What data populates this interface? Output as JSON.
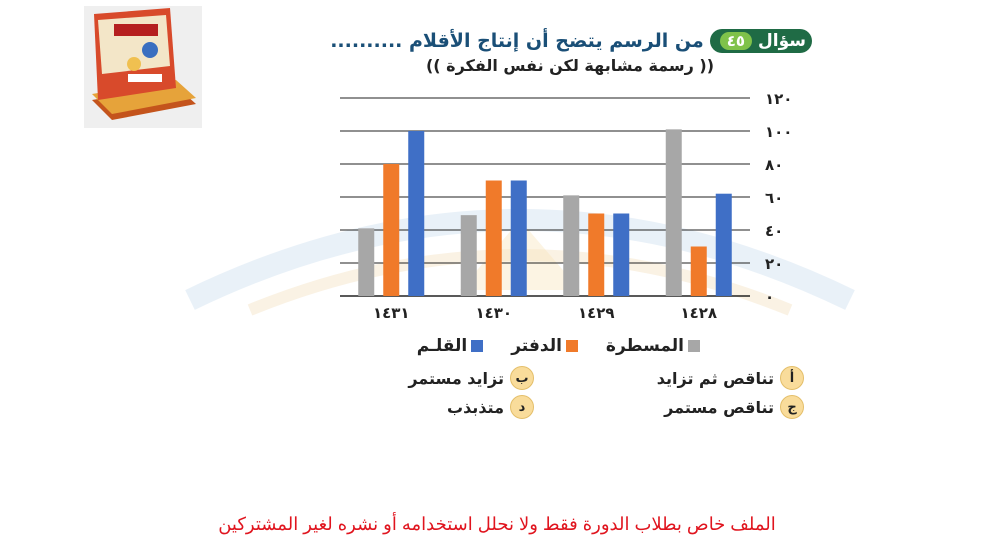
{
  "question": {
    "label": "سؤال",
    "number": "٤٥",
    "text": "من الرسم يتضح أن إنتاج الأقلام ..........",
    "subtitle": "(( رسمة مشابهة لكن نفس الفكرة ))"
  },
  "colors": {
    "ruler": "#a7a7a7",
    "notebook": "#f07a2a",
    "pen": "#3f6fc6",
    "badge": "#1f6b45",
    "badge_num": "#7fc24a",
    "footer": "#e0141e"
  },
  "chart_data": {
    "type": "bar",
    "categories": [
      "١٤٣١",
      "١٤٣٠",
      "١٤٢٩",
      "١٤٢٨"
    ],
    "series": [
      {
        "name": "المسطرة",
        "values": [
          41,
          49,
          61,
          101
        ]
      },
      {
        "name": "الدفتر",
        "values": [
          80,
          70,
          50,
          30
        ]
      },
      {
        "name": "القلـم",
        "values": [
          100,
          70,
          50,
          62
        ]
      }
    ],
    "ylim": [
      0,
      120
    ],
    "yticks": [
      "٠",
      "٢٠",
      "٤٠",
      "٦٠",
      "٨٠",
      "١٠٠",
      "١٢٠"
    ],
    "grid": true,
    "legend": "bottom"
  },
  "legend": {
    "ruler": "المسطرة",
    "notebook": "الدفتر",
    "pen": "القلـم"
  },
  "options": [
    {
      "letter": "أ",
      "text": "تناقص ثم تزايد"
    },
    {
      "letter": "ب",
      "text": "تزايد مستمر"
    },
    {
      "letter": "ج",
      "text": "تناقص مستمر"
    },
    {
      "letter": "د",
      "text": "متذبذب"
    }
  ],
  "footer": "الملف خاص بطلاب الدورة فقط ولا نحلل استخدامه أو نشره لغير المشتركين"
}
